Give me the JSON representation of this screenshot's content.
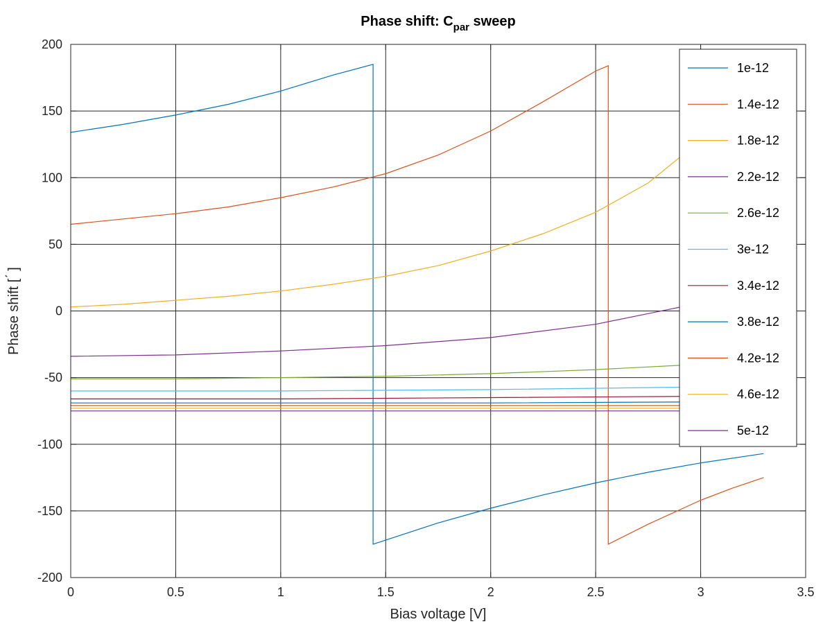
{
  "chart_data": {
    "type": "line",
    "title": {
      "main": "Phase shift: C",
      "sub": "par",
      "rest": " sweep"
    },
    "xlabel": "Bias voltage [V]",
    "ylabel": "Phase shift [ ́ ]",
    "xlim": [
      0,
      3.5
    ],
    "ylim": [
      -200,
      200
    ],
    "x_ticks": [
      0,
      0.5,
      1,
      1.5,
      2,
      2.5,
      3,
      3.5
    ],
    "x_tick_labels": [
      "0",
      "0.5",
      "1",
      "1.5",
      "2",
      "2.5",
      "3",
      "3.5"
    ],
    "y_ticks": [
      -200,
      -150,
      -100,
      -50,
      0,
      50,
      100,
      150,
      200
    ],
    "y_tick_labels": [
      "-200",
      "-150",
      "-100",
      "-50",
      "0",
      "50",
      "100",
      "150",
      "200"
    ],
    "grid": true,
    "legend_position": "top-right",
    "series": [
      {
        "name": "1e-12",
        "color": "#0072bd",
        "x": [
          0,
          0.25,
          0.5,
          0.75,
          1.0,
          1.25,
          1.44,
          1.4401,
          1.75,
          2.0,
          2.25,
          2.5,
          2.75,
          3.0,
          3.3
        ],
        "y": [
          134,
          140,
          147,
          155,
          165,
          177,
          185,
          -175,
          -159,
          -148,
          -138,
          -129,
          -121,
          -114,
          -107
        ]
      },
      {
        "name": "1.4e-12",
        "color": "#d95319",
        "x": [
          0,
          0.25,
          0.5,
          0.75,
          1.0,
          1.25,
          1.5,
          1.75,
          2.0,
          2.25,
          2.5,
          2.56,
          2.5601,
          2.75,
          3.0,
          3.15,
          3.3
        ],
        "y": [
          65,
          69,
          73,
          78,
          85,
          93,
          103,
          117,
          135,
          157,
          180,
          184,
          -175,
          -160,
          -142,
          -133,
          -125
        ]
      },
      {
        "name": "1.8e-12",
        "color": "#edb120",
        "x": [
          0,
          0.25,
          0.5,
          0.75,
          1.0,
          1.25,
          1.5,
          1.75,
          2.0,
          2.25,
          2.5,
          2.75,
          3.0,
          3.15,
          3.3
        ],
        "y": [
          3,
          5,
          8,
          11,
          15,
          20,
          26,
          34,
          45,
          58,
          74,
          96,
          128,
          150,
          175
        ]
      },
      {
        "name": "2.2e-12",
        "color": "#7e2f8e",
        "x": [
          0,
          0.5,
          1.0,
          1.5,
          2.0,
          2.5,
          2.75,
          3.0,
          3.3
        ],
        "y": [
          -34,
          -33,
          -30,
          -26,
          -20,
          -10,
          -2,
          6,
          19
        ]
      },
      {
        "name": "2.6e-12",
        "color": "#77ac30",
        "x": [
          0,
          0.5,
          1.0,
          1.5,
          2.0,
          2.5,
          3.0,
          3.3
        ],
        "y": [
          -51,
          -51,
          -50,
          -49,
          -47,
          -44,
          -40,
          -37
        ]
      },
      {
        "name": "3e-12",
        "color": "#4dbeee",
        "x": [
          0,
          1.0,
          2.0,
          3.0,
          3.3
        ],
        "y": [
          -60,
          -60,
          -59,
          -57,
          -56
        ]
      },
      {
        "name": "3.4e-12",
        "color": "#a2142f",
        "x": [
          0,
          1.0,
          2.0,
          3.0,
          3.3
        ],
        "y": [
          -66,
          -66,
          -65,
          -64,
          -64
        ]
      },
      {
        "name": "3.8e-12",
        "color": "#0072bd",
        "x": [
          0,
          1.0,
          2.0,
          3.3
        ],
        "y": [
          -69,
          -69,
          -69,
          -68
        ]
      },
      {
        "name": "4.2e-12",
        "color": "#d95319",
        "x": [
          0,
          1.0,
          2.0,
          3.3
        ],
        "y": [
          -71,
          -71,
          -71,
          -71
        ]
      },
      {
        "name": "4.6e-12",
        "color": "#edb120",
        "x": [
          0,
          1.0,
          2.0,
          3.3
        ],
        "y": [
          -73,
          -73,
          -73,
          -73
        ]
      },
      {
        "name": "5e-12",
        "color": "#7e2f8e",
        "x": [
          0,
          1.0,
          2.0,
          3.3
        ],
        "y": [
          -75,
          -75,
          -75,
          -75
        ]
      }
    ]
  }
}
